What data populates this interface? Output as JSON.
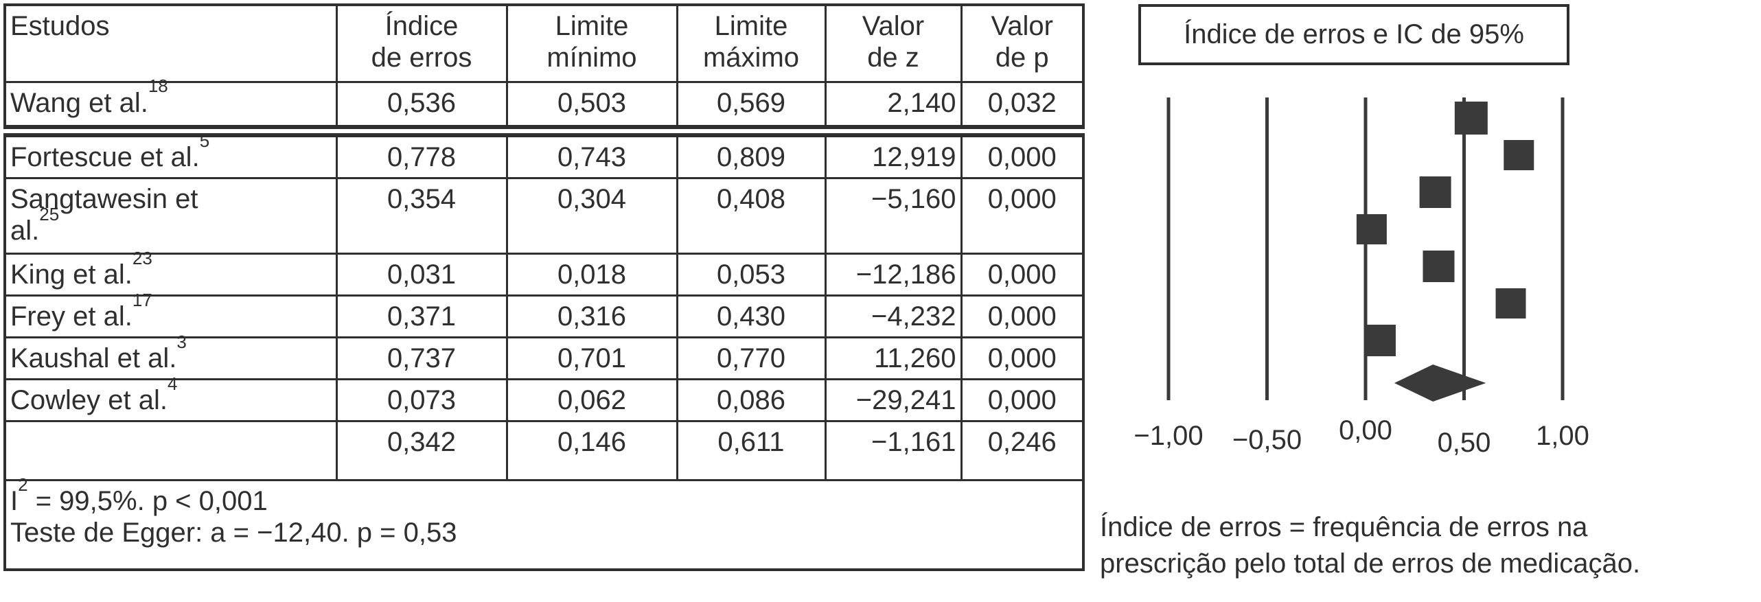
{
  "colors": {
    "ink": "#2f2f2f",
    "plot_ink": "#3a3a3a",
    "background": "#ffffff"
  },
  "table": {
    "headers": {
      "estudos": "Estudos",
      "indice": {
        "line1": "Índice",
        "line2": "de erros"
      },
      "lim_min": {
        "line1": "Limite",
        "line2": "mínimo"
      },
      "lim_max": {
        "line1": "Limite",
        "line2": "máximo"
      },
      "valor_z": {
        "line1": "Valor",
        "line2": "de z"
      },
      "valor_p": {
        "line1": "Valor",
        "line2": "de p"
      }
    },
    "rows": [
      {
        "name": "Wang et al.",
        "ref": "18",
        "indice": "0,536",
        "lim_min": "0,503",
        "lim_max": "0,569",
        "z": "2,140",
        "p": "0,032"
      },
      {
        "name": "Fortescue et al.",
        "ref": "5",
        "indice": "0,778",
        "lim_min": "0,743",
        "lim_max": "0,809",
        "z": "12,919",
        "p": "0,000"
      },
      {
        "name": "Sangtawesin et\nal.",
        "ref": "25",
        "indice": "0,354",
        "lim_min": "0,304",
        "lim_max": "0,408",
        "z": "−5,160",
        "p": "0,000"
      },
      {
        "name": "King et al.",
        "ref": "23",
        "indice": "0,031",
        "lim_min": "0,018",
        "lim_max": "0,053",
        "z": "−12,186",
        "p": "0,000"
      },
      {
        "name": "Frey et al.",
        "ref": "17",
        "indice": "0,371",
        "lim_min": "0,316",
        "lim_max": "0,430",
        "z": "−4,232",
        "p": "0,000"
      },
      {
        "name": "Kaushal et al.",
        "ref": "3",
        "indice": "0,737",
        "lim_min": "0,701",
        "lim_max": "0,770",
        "z": "11,260",
        "p": "0,000"
      },
      {
        "name": "Cowley et al.",
        "ref": "4",
        "indice": "0,073",
        "lim_min": "0,062",
        "lim_max": "0,086",
        "z": "−29,241",
        "p": "0,000"
      },
      {
        "name": "",
        "ref": "",
        "indice": "0,342",
        "lim_min": "0,146",
        "lim_max": "0,611",
        "z": "−1,161",
        "p": "0,246"
      }
    ],
    "footer": {
      "line1_prefix": "I",
      "line1_sup": "2",
      "line1_rest": " = 99,5%. p < 0,001",
      "line2": "Teste de Egger: a = −12,40. p = 0,53"
    }
  },
  "plot": {
    "title": "Índice de erros e IC de 95%",
    "footnote_line1": "Índice de erros = frequência de erros na",
    "footnote_line2": "prescrição pelo total de erros de medicação."
  },
  "chart_data": {
    "type": "forest",
    "title": "Índice de erros e IC de 95%",
    "x_axis": {
      "ticks": [
        -1.0,
        -0.5,
        0.0,
        0.5,
        1.0
      ],
      "tick_labels": [
        "−1,00",
        "−0,50",
        "0,00",
        "0,50",
        "1,00"
      ],
      "range": [
        -1.35,
        1.35
      ],
      "grid": true
    },
    "marker": "square",
    "pooled_marker": "diamond",
    "studies": [
      {
        "label": "Wang et al.18",
        "estimate": 0.536,
        "ci_low": 0.503,
        "ci_high": 0.569,
        "z": 2.14,
        "p": 0.032
      },
      {
        "label": "Fortescue et al.5",
        "estimate": 0.778,
        "ci_low": 0.743,
        "ci_high": 0.809,
        "z": 12.919,
        "p": 0.0
      },
      {
        "label": "Sangtawesin et al.25",
        "estimate": 0.354,
        "ci_low": 0.304,
        "ci_high": 0.408,
        "z": -5.16,
        "p": 0.0
      },
      {
        "label": "King et al.23",
        "estimate": 0.031,
        "ci_low": 0.018,
        "ci_high": 0.053,
        "z": -12.186,
        "p": 0.0
      },
      {
        "label": "Frey et al.17",
        "estimate": 0.371,
        "ci_low": 0.316,
        "ci_high": 0.43,
        "z": -4.232,
        "p": 0.0
      },
      {
        "label": "Kaushal et al.3",
        "estimate": 0.737,
        "ci_low": 0.701,
        "ci_high": 0.77,
        "z": 11.26,
        "p": 0.0
      },
      {
        "label": "Cowley et al.4",
        "estimate": 0.073,
        "ci_low": 0.062,
        "ci_high": 0.086,
        "z": -29.241,
        "p": 0.0
      }
    ],
    "pooled": {
      "estimate": 0.342,
      "ci_low": 0.146,
      "ci_high": 0.611,
      "z": -1.161,
      "p": 0.246
    },
    "heterogeneity": "I2 = 99,5%. p < 0,001",
    "egger_test": "Teste de Egger: a = −12,40. p = 0,53",
    "footnote": "Índice de erros = frequência de erros na prescrição pelo total de erros de medicação."
  }
}
